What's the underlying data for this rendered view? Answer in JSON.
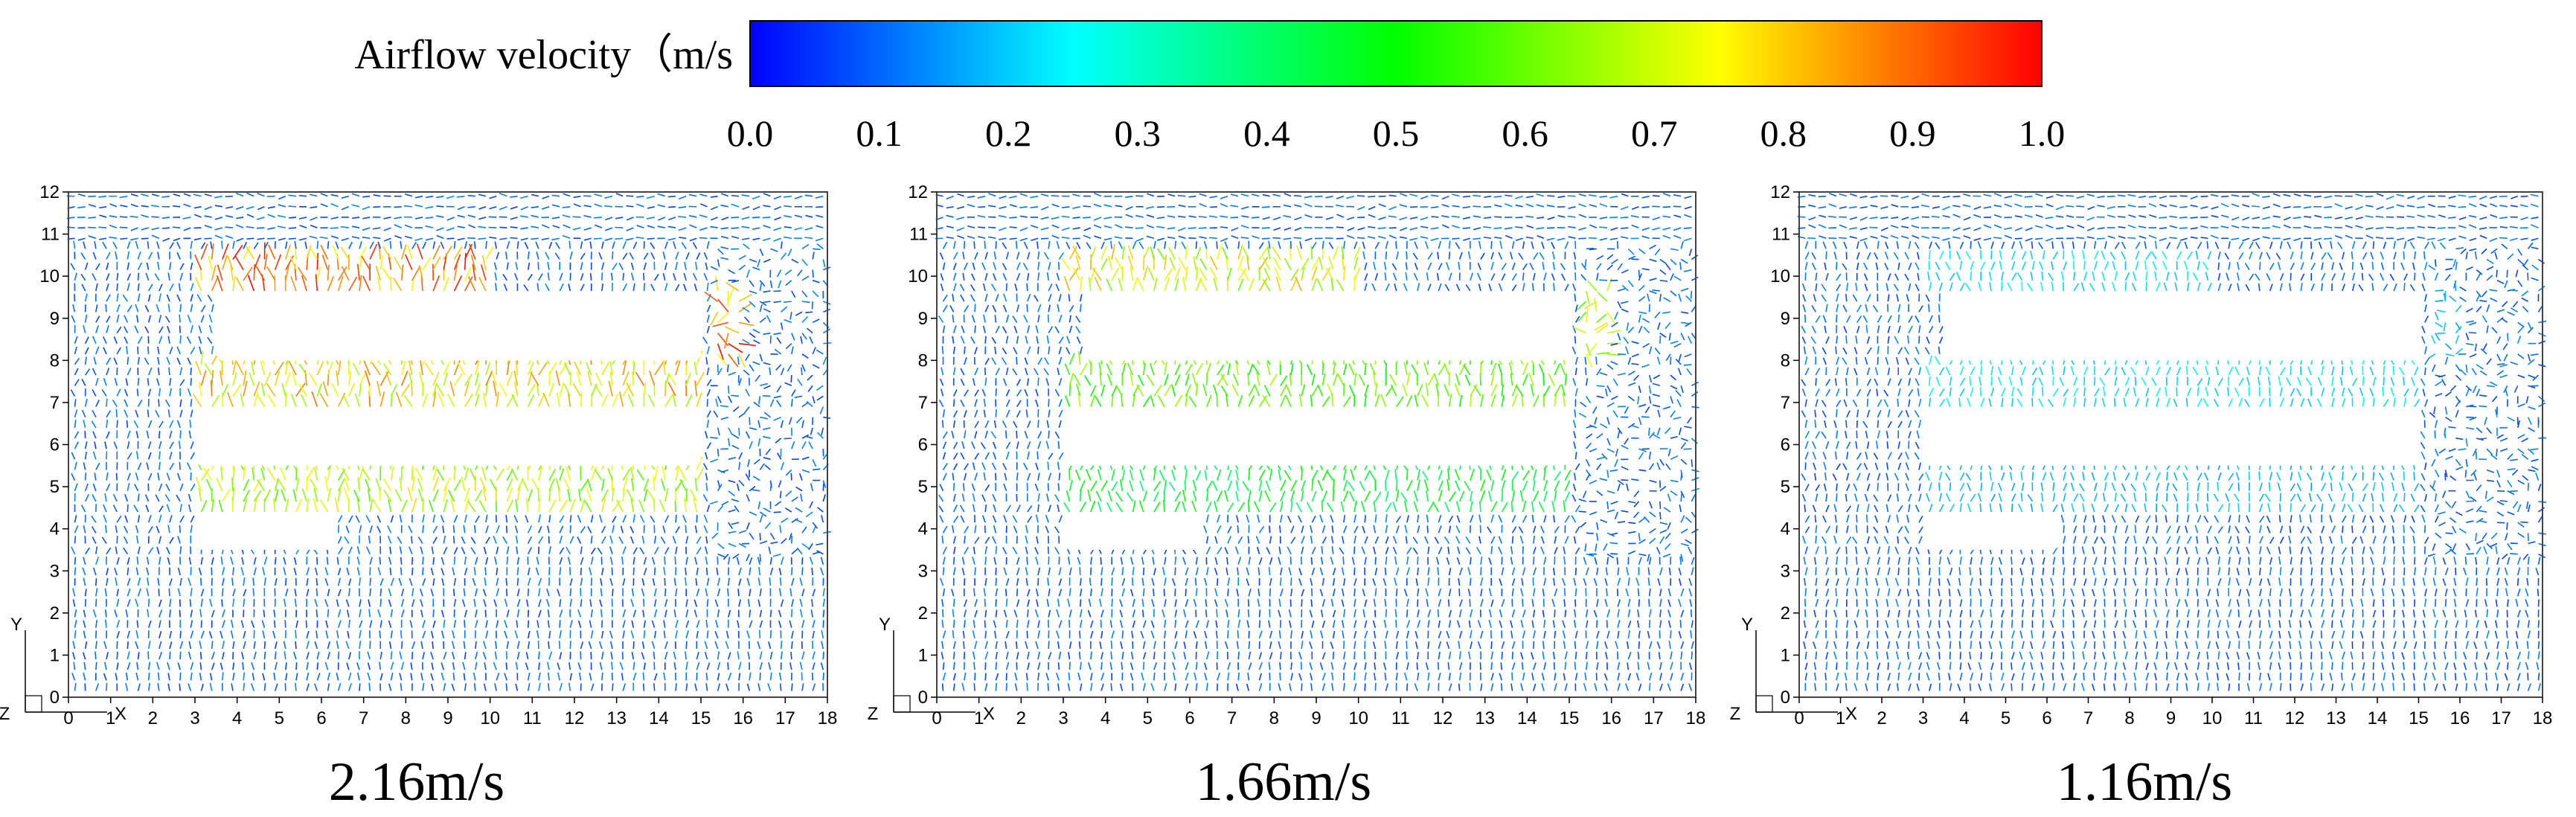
{
  "chart_data": {
    "type": "vector_field",
    "colorbar": {
      "label": "Airflow velocity（m/s",
      "ticks": [
        "0.0",
        "0.1",
        "0.2",
        "0.3",
        "0.4",
        "0.5",
        "0.6",
        "0.7",
        "0.8",
        "0.9",
        "1.0"
      ],
      "range": [
        0.0,
        1.0
      ],
      "colormap": [
        "#0000ff",
        "#00ffff",
        "#00ff00",
        "#ffff00",
        "#ff0000"
      ]
    },
    "axes": {
      "x_ticks": [
        "0",
        "1",
        "2",
        "3",
        "4",
        "5",
        "6",
        "7",
        "8",
        "9",
        "10",
        "11",
        "12",
        "13",
        "14",
        "15",
        "16",
        "17",
        "18"
      ],
      "y_ticks": [
        "0",
        "1",
        "2",
        "3",
        "4",
        "5",
        "6",
        "7",
        "8",
        "9",
        "10",
        "11",
        "12"
      ],
      "xlim": [
        0,
        18
      ],
      "ylim": [
        0,
        12
      ],
      "x_axis_label": "X",
      "y_axis_label": "Y",
      "z_axis_label": "Z"
    },
    "panels": [
      {
        "caption": "2.16m/s",
        "obstacles": [
          {
            "x": [
              3.5,
              15.0
            ],
            "y": [
              8.0,
              9.5
            ]
          },
          {
            "x": [
              3.0,
              15.0
            ],
            "y": [
              5.5,
              6.8
            ]
          },
          {
            "x": [
              3.0,
              6.3
            ],
            "y": [
              3.5,
              4.2
            ]
          }
        ],
        "high_velocity_zones": [
          {
            "x": [
              3.0,
              10.0
            ],
            "y": [
              9.6,
              10.6
            ],
            "v": 0.95
          },
          {
            "x": [
              15.2,
              16.0
            ],
            "y": [
              8.0,
              9.7
            ],
            "v": 0.95
          },
          {
            "x": [
              3.0,
              15.0
            ],
            "y": [
              6.9,
              7.9
            ],
            "v": 0.85
          },
          {
            "x": [
              3.0,
              15.0
            ],
            "y": [
              4.4,
              5.4
            ],
            "v": 0.75
          }
        ]
      },
      {
        "caption": "1.66m/s",
        "obstacles": [
          {
            "x": [
              3.5,
              15.0
            ],
            "y": [
              8.0,
              9.5
            ]
          },
          {
            "x": [
              3.0,
              15.0
            ],
            "y": [
              5.5,
              6.8
            ]
          },
          {
            "x": [
              3.0,
              6.3
            ],
            "y": [
              3.5,
              4.2
            ]
          }
        ],
        "high_velocity_zones": [
          {
            "x": [
              3.0,
              10.0
            ],
            "y": [
              9.6,
              10.6
            ],
            "v": 0.8
          },
          {
            "x": [
              15.2,
              16.0
            ],
            "y": [
              8.0,
              9.7
            ],
            "v": 0.75
          },
          {
            "x": [
              3.0,
              15.0
            ],
            "y": [
              6.9,
              7.9
            ],
            "v": 0.65
          },
          {
            "x": [
              3.0,
              15.0
            ],
            "y": [
              4.4,
              5.4
            ],
            "v": 0.5
          }
        ]
      },
      {
        "caption": "1.16m/s",
        "obstacles": [
          {
            "x": [
              3.5,
              15.0
            ],
            "y": [
              8.0,
              9.5
            ]
          },
          {
            "x": [
              3.0,
              15.0
            ],
            "y": [
              5.5,
              6.8
            ]
          },
          {
            "x": [
              3.0,
              6.3
            ],
            "y": [
              3.5,
              4.2
            ]
          }
        ],
        "high_velocity_zones": [
          {
            "x": [
              3.0,
              10.0
            ],
            "y": [
              9.6,
              10.6
            ],
            "v": 0.25
          },
          {
            "x": [
              15.2,
              16.0
            ],
            "y": [
              8.0,
              9.7
            ],
            "v": 0.2
          },
          {
            "x": [
              3.0,
              15.0
            ],
            "y": [
              6.9,
              7.9
            ],
            "v": 0.25
          },
          {
            "x": [
              3.0,
              15.0
            ],
            "y": [
              4.4,
              5.4
            ],
            "v": 0.2
          }
        ]
      }
    ]
  }
}
